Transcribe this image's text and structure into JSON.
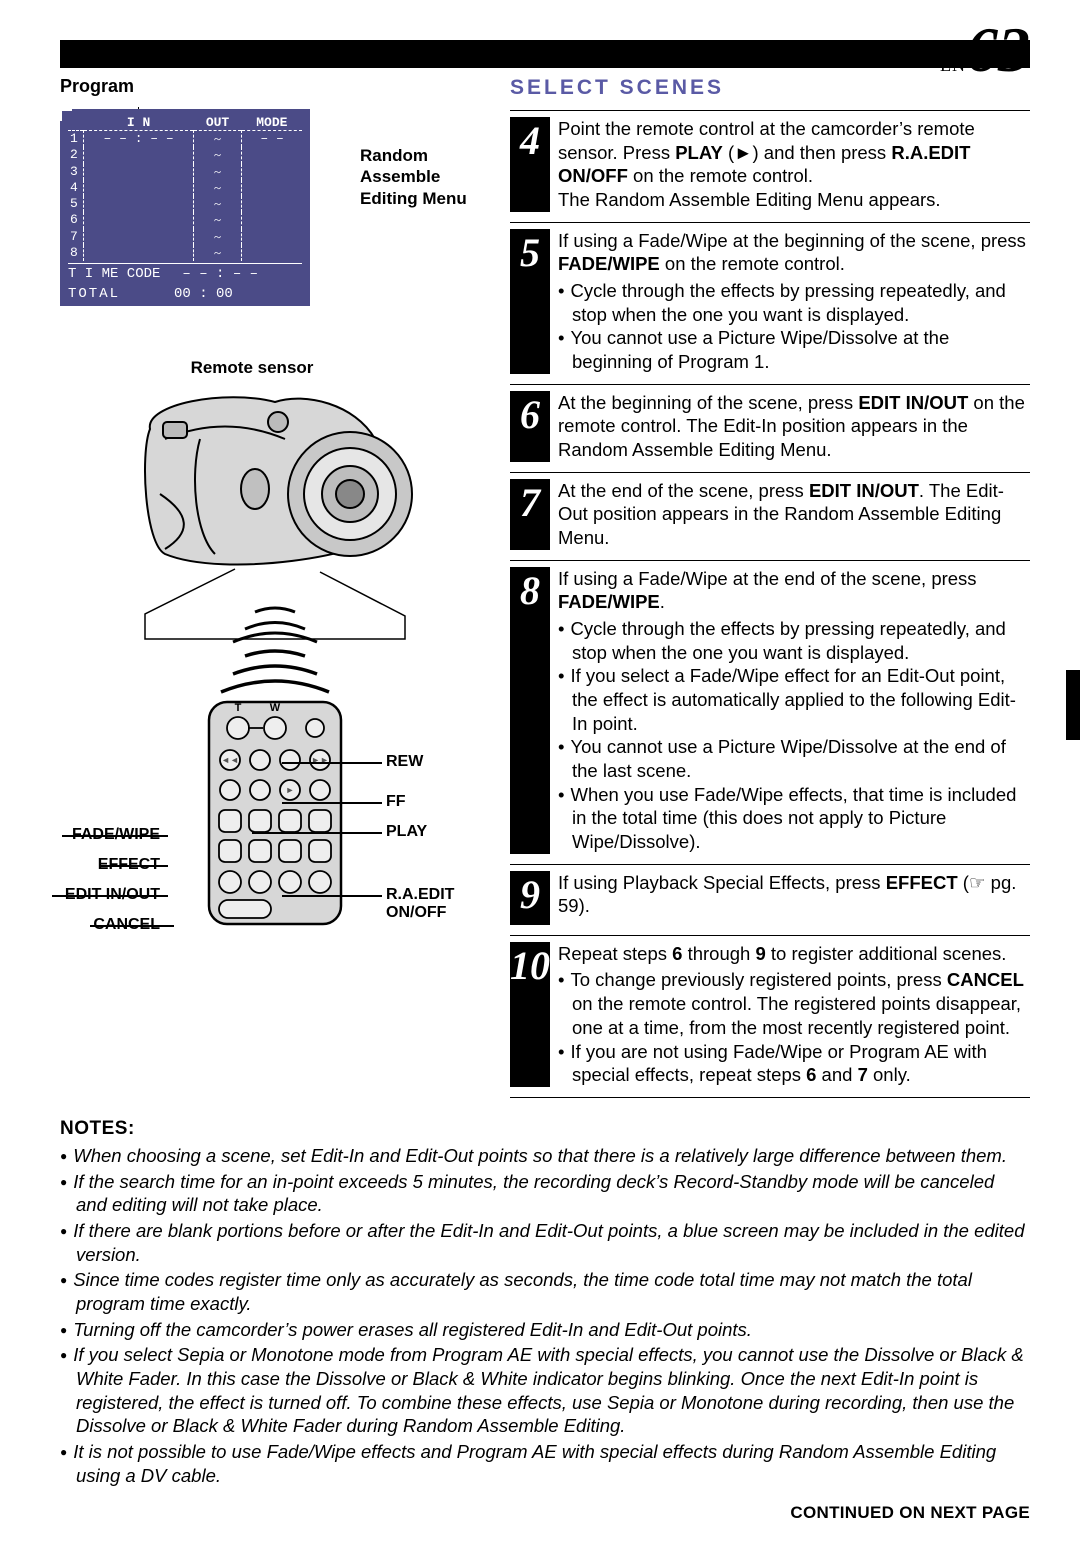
{
  "page": {
    "lang": "EN",
    "number": "63"
  },
  "left": {
    "program_label": "Program",
    "menu_caption": "Random Assemble Editing Menu",
    "sensor_label": "Remote sensor",
    "menu": {
      "headers": [
        "",
        "I N",
        "OUT",
        "MODE"
      ],
      "rows": [
        "1",
        "2",
        "3",
        "4",
        "5",
        "6",
        "7",
        "8"
      ],
      "row1_in": "– – : – –",
      "row1_out": "~",
      "row1_mode": "– –",
      "tilde": "~",
      "time_code_label": "T I ME  CODE",
      "time_code_val": "– – : – –",
      "total_label": "TOTAL",
      "total_val": "00 : 00"
    },
    "remote_labels": {
      "t": "T",
      "w": "W",
      "rew": "REW",
      "ff": "FF",
      "play": "PLAY",
      "fade": "FADE/WIPE",
      "effect": "EFFECT",
      "edit": "EDIT IN/OUT",
      "cancel": "CANCEL",
      "raedit": "R.A.EDIT",
      "onoff": "ON/OFF"
    }
  },
  "right": {
    "title": "SELECT SCENES",
    "steps": [
      {
        "n": "4",
        "html": "Point the remote control at the camcorder’s remote sensor. Press <b>PLAY</b> (►) and then press <b>R.A.EDIT ON/OFF</b> on the remote control.<br>The Random Assemble Editing Menu appears."
      },
      {
        "n": "5",
        "html": "If using a Fade/Wipe at the beginning of the scene, press <b>FADE/WIPE</b> on the remote control.",
        "bullets": [
          "Cycle through the effects by pressing repeatedly, and stop when the one you want is displayed.",
          "You cannot use a Picture Wipe/Dissolve at the beginning of Program 1."
        ]
      },
      {
        "n": "6",
        "html": "At the beginning of the scene, press <b>EDIT IN/OUT</b> on the remote control. The Edit-In position appears in the Random Assemble Editing Menu."
      },
      {
        "n": "7",
        "html": "At the end of the scene, press <b>EDIT IN/OUT</b>. The Edit-Out position appears in the Random Assemble Editing Menu."
      },
      {
        "n": "8",
        "html": "If using a Fade/Wipe at the end of the scene, press <b>FADE/WIPE</b>.",
        "bullets": [
          "Cycle through the effects by pressing repeatedly, and stop when the one you want is displayed.",
          "If you select a Fade/Wipe effect for an Edit-Out point, the effect is automatically applied to the following Edit-In point.",
          "You cannot use a Picture Wipe/Dissolve at the end of the last scene.",
          "When you use Fade/Wipe effects, that time is included in the total time (this does not apply to Picture Wipe/Dissolve)."
        ]
      },
      {
        "n": "9",
        "html": "If using Playback Special Effects, press <b>EFFECT</b> (☞ pg. 59)."
      },
      {
        "n": "10",
        "html": "Repeat steps <b>6</b> through <b>9</b> to register additional scenes.",
        "bullets": [
          "To change previously registered points, press <b>CANCEL</b> on the remote control. The registered points disappear, one at a time, from the most recently registered point.",
          "If you are not using Fade/Wipe or Program AE with special effects, repeat steps <b>6</b> and <b>7</b> only."
        ]
      }
    ]
  },
  "notes": {
    "head": "NOTES:",
    "items": [
      "When choosing a scene, set Edit-In and Edit-Out points so that there is a relatively large difference between them.",
      "If the search time for an in-point exceeds 5 minutes, the recording deck’s Record-Standby mode will be canceled and editing will not take place.",
      "If there are blank portions before or after the Edit-In and Edit-Out points, a blue screen may be included in the edited version.",
      "Since time codes register time only as accurately as seconds, the time code total time may not match the total program time exactly.",
      "Turning off the camcorder’s power erases all registered Edit-In and Edit-Out points.",
      "If you select Sepia or Monotone mode from Program AE with special effects, you cannot use the Dissolve or Black & White Fader. In this case the Dissolve or Black & White indicator begins blinking. Once the next Edit-In point is registered, the effect is turned off. To combine these effects, use Sepia or Monotone during recording, then use the Dissolve or Black & White Fader during Random Assemble Editing.",
      "It is not possible to use Fade/Wipe effects and Program AE with special effects during Random Assemble Editing using a DV cable."
    ]
  },
  "continued": "CONTINUED ON NEXT PAGE",
  "colors": {
    "accent": "#5a5aa5",
    "menu_bg": "#4b4b87"
  }
}
